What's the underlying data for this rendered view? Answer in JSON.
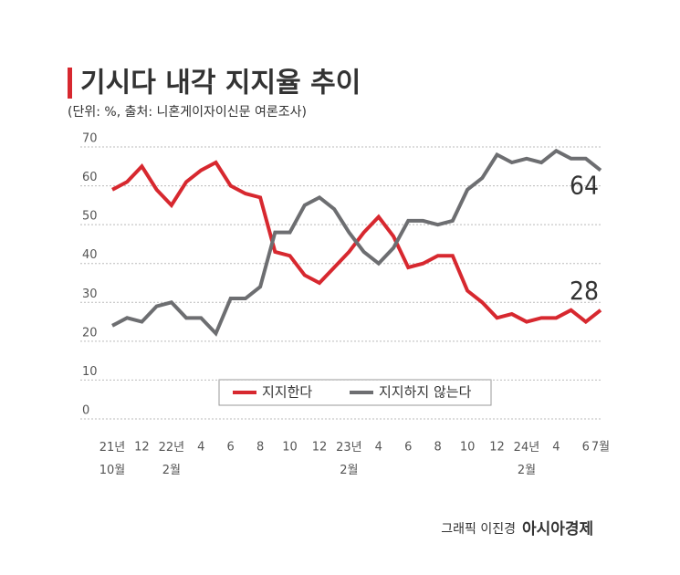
{
  "chart_data": {
    "type": "line",
    "title": "기시다 내각 지지율 추이",
    "subtitle": "(단위: %, 출처: 니혼게이자이신문 여론조사)",
    "credit": "그래픽 이진경",
    "brand": "아시아경제",
    "categories": [
      "21년 10월",
      null,
      "12",
      null,
      "22년 2월",
      null,
      "4",
      null,
      "6",
      null,
      "8",
      null,
      "10",
      null,
      "12",
      null,
      "23년 2월",
      null,
      "4",
      null,
      "6",
      null,
      "8",
      null,
      "10",
      null,
      "12",
      null,
      "24년 2월",
      null,
      "4",
      null,
      "6",
      "7월"
    ],
    "series": [
      {
        "name": "지지한다",
        "color": "#d7282f",
        "values": [
          59,
          61,
          65,
          59,
          55,
          61,
          64,
          66,
          60,
          58,
          57,
          43,
          42,
          37,
          35,
          39,
          43,
          48,
          52,
          47,
          39,
          40,
          42,
          42,
          33,
          30,
          26,
          27,
          25,
          26,
          26,
          28,
          25,
          28
        ]
      },
      {
        "name": "지지하지 않는다",
        "color": "#6d6e71",
        "values": [
          24,
          26,
          25,
          29,
          30,
          26,
          26,
          22,
          31,
          31,
          34,
          48,
          48,
          55,
          57,
          54,
          48,
          43,
          40,
          44,
          51,
          51,
          50,
          51,
          59,
          62,
          68,
          66,
          67,
          66,
          69,
          67,
          67,
          64
        ]
      }
    ],
    "ylim": [
      0,
      70
    ],
    "yticks": [
      0,
      10,
      20,
      30,
      40,
      50,
      60,
      70
    ],
    "grid": true
  }
}
